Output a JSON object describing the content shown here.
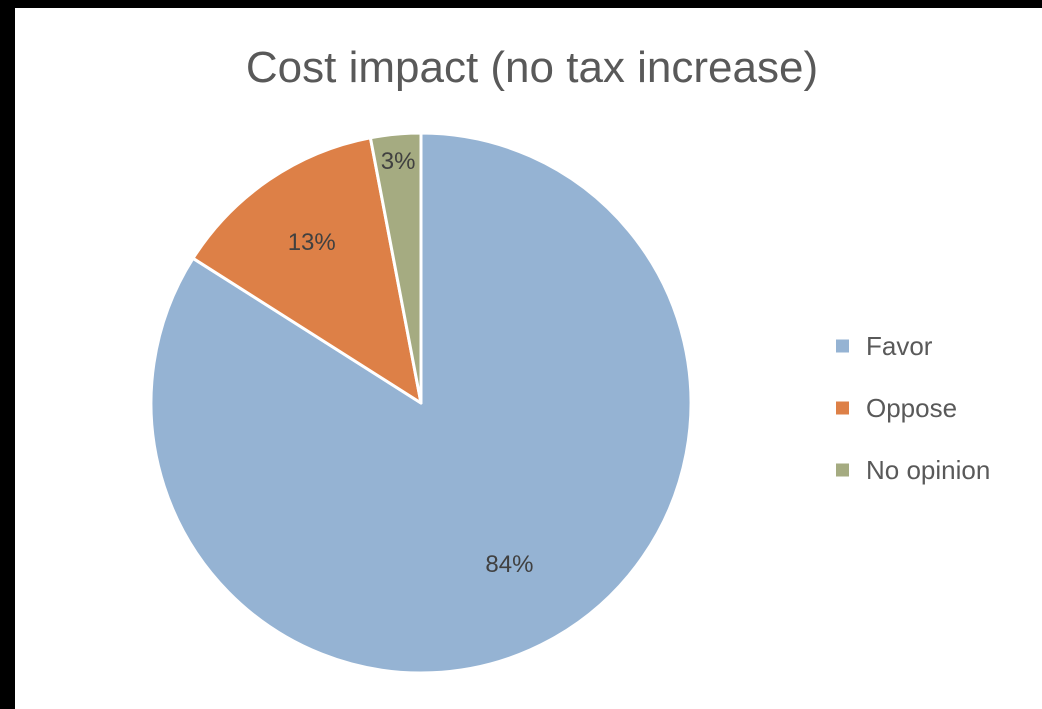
{
  "chart_data": {
    "type": "pie",
    "title": "Cost impact (no tax increase)",
    "categories": [
      "Favor",
      "Oppose",
      "No opinion"
    ],
    "values": [
      84,
      13,
      3
    ],
    "data_labels": [
      "84%",
      "13%",
      "3%"
    ],
    "colors": [
      "#95b3d3",
      "#dd8047",
      "#a5ab81"
    ],
    "legend_position": "right"
  }
}
